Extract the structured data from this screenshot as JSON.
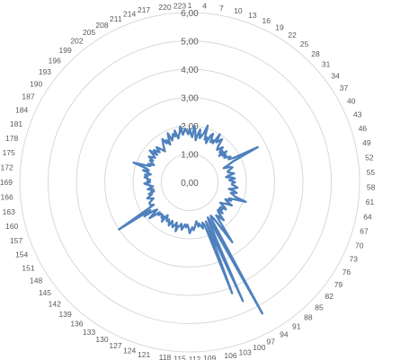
{
  "chart_data": {
    "type": "radar",
    "title": "",
    "grid": true,
    "legend": "none",
    "radial_axis": {
      "min": 0,
      "max": 6,
      "tick_values": [
        0,
        1,
        2,
        3,
        4,
        5,
        6
      ],
      "tick_labels": [
        "0,00",
        "1,00",
        "2,00",
        "3,00",
        "4,00",
        "5,00",
        "6,00"
      ]
    },
    "category_count": 224,
    "category_label_step": 3,
    "category_labels": [
      "1",
      "4",
      "7",
      "10",
      "13",
      "16",
      "19",
      "22",
      "25",
      "28",
      "31",
      "34",
      "37",
      "40",
      "43",
      "46",
      "49",
      "52",
      "55",
      "58",
      "61",
      "64",
      "67",
      "70",
      "73",
      "76",
      "79",
      "82",
      "85",
      "88",
      "91",
      "94",
      "97",
      "100",
      "103",
      "106",
      "109",
      "112",
      "115",
      "118",
      "121",
      "124",
      "127",
      "130",
      "133",
      "136",
      "139",
      "142",
      "145",
      "148",
      "151",
      "154",
      "157",
      "160",
      "163",
      "166",
      "169",
      "172",
      "175",
      "178",
      "181",
      "184",
      "187",
      "190",
      "193",
      "196",
      "199",
      "202",
      "205",
      "208",
      "211",
      "214",
      "217",
      "220",
      "223"
    ],
    "series": [
      {
        "color": "#4f81bd",
        "values": [
          1.9,
          1.7,
          1.6,
          2.0,
          1.8,
          1.5,
          1.7,
          1.9,
          1.6,
          1.7,
          1.8,
          2.1,
          1.6,
          1.7,
          1.5,
          1.8,
          1.9,
          1.6,
          1.7,
          1.6,
          2.0,
          1.7,
          1.8,
          1.9,
          1.6,
          1.5,
          1.6,
          1.7,
          1.5,
          1.6,
          1.4,
          1.7,
          1.5,
          1.6,
          1.5,
          1.6,
          1.7,
          1.6,
          1.8,
          2.7,
          1.7,
          1.5,
          1.3,
          1.5,
          1.6,
          1.5,
          1.4,
          1.4,
          1.5,
          1.6,
          1.4,
          1.3,
          1.5,
          1.6,
          1.4,
          1.5,
          1.6,
          1.5,
          1.5,
          1.6,
          1.7,
          1.6,
          1.4,
          1.6,
          1.7,
          1.5,
          1.6,
          1.7,
          2.1,
          1.7,
          1.5,
          1.6,
          1.4,
          1.5,
          1.7,
          1.5,
          1.4,
          1.3,
          1.5,
          1.6,
          1.4,
          1.5,
          1.4,
          1.6,
          1.4,
          1.5,
          1.8,
          1.6,
          1.5,
          1.9,
          2.6,
          1.6,
          1.4,
          1.5,
          5.3,
          1.4,
          1.6,
          4.6,
          1.5,
          4.2,
          1.6,
          1.5,
          1.7,
          1.6,
          1.5,
          1.6,
          1.4,
          1.5,
          1.6,
          1.7,
          1.6,
          1.7,
          1.8,
          1.6,
          1.5,
          1.6,
          1.5,
          1.6,
          1.7,
          1.5,
          1.6,
          1.6,
          1.8,
          1.5,
          1.6,
          1.7,
          1.6,
          1.5,
          1.7,
          1.6,
          1.5,
          1.6,
          1.5,
          1.4,
          1.7,
          1.5,
          1.6,
          1.5,
          1.5,
          1.6,
          1.5,
          1.7,
          1.9,
          1.5,
          1.6,
          2.0,
          1.7,
          3.0,
          1.5,
          1.6,
          1.6,
          1.6,
          1.5,
          1.4,
          1.5,
          1.6,
          1.5,
          1.4,
          1.5,
          1.3,
          1.4,
          1.3,
          1.5,
          1.4,
          1.3,
          1.4,
          1.5,
          1.6,
          1.4,
          1.5,
          1.4,
          1.5,
          1.6,
          1.5,
          1.6,
          1.4,
          1.5,
          1.7,
          1.5,
          1.6,
          2.1,
          1.7,
          1.5,
          1.6,
          1.4,
          1.5,
          1.6,
          1.5,
          1.7,
          1.6,
          1.5,
          1.6,
          1.8,
          1.5,
          1.7,
          1.6,
          1.5,
          1.7,
          1.6,
          1.5,
          1.4,
          1.5,
          1.6,
          1.7,
          1.8,
          1.6,
          1.7,
          1.5,
          1.7,
          1.9,
          1.6,
          1.7,
          1.8,
          1.7,
          1.9,
          1.6,
          1.7,
          1.8,
          2.0,
          1.7,
          1.8,
          1.9,
          1.8,
          1.7
        ]
      }
    ]
  }
}
